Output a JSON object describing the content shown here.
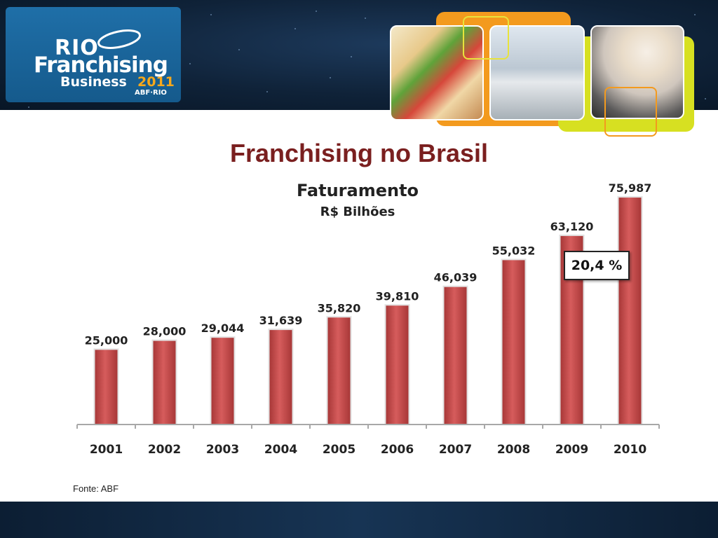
{
  "slide": {
    "title": "Franchising no Brasil",
    "source": "Fonte: ABF"
  },
  "logo": {
    "line1": "RIO",
    "line2": "Franchising",
    "line3": "Business",
    "year": "2011",
    "sub": "ABF·RIO"
  },
  "colors": {
    "bar": "#c84b4b",
    "title": "#7a1f1f",
    "header_band": "#0f2238",
    "logo_box": "#1f6fa8"
  },
  "annotation": {
    "growth": "20,4 %"
  },
  "chart_data": {
    "type": "bar",
    "title": "Faturamento",
    "subtitle": "R$ Bilhões",
    "categories": [
      "2001",
      "2002",
      "2003",
      "2004",
      "2005",
      "2006",
      "2007",
      "2008",
      "2009",
      "2010"
    ],
    "values": [
      25.0,
      28.0,
      29.044,
      31.639,
      35.82,
      39.81,
      46.039,
      55.032,
      63.12,
      75.987
    ],
    "value_labels": [
      "25,000",
      "28,000",
      "29,044",
      "31,639",
      "35,820",
      "39,810",
      "46,039",
      "55,032",
      "63,120",
      "75,987"
    ],
    "ylim": [
      0,
      76
    ],
    "grid": false,
    "legend": "none"
  }
}
